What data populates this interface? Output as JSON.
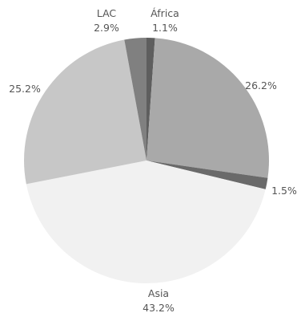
{
  "chart_data": {
    "type": "pie",
    "title": "",
    "slices": [
      {
        "label": "África",
        "value": 1.1,
        "value_label": "1.1%",
        "color": "#5e5e5e"
      },
      {
        "label": "",
        "value": 26.2,
        "value_label": "26.2%",
        "color": "#a9a9a9"
      },
      {
        "label": "",
        "value": 1.5,
        "value_label": "1.5%",
        "color": "#6a6a6a"
      },
      {
        "label": "Asia",
        "value": 43.2,
        "value_label": "43.2%",
        "color": "#f1f1f1"
      },
      {
        "label": "",
        "value": 25.2,
        "value_label": "25.2%",
        "color": "#c7c7c7"
      },
      {
        "label": "LAC",
        "value": 2.9,
        "value_label": "2.9%",
        "color": "#808080"
      }
    ],
    "start_angle_deg": 0,
    "direction": "clockwise",
    "legend": "none"
  }
}
